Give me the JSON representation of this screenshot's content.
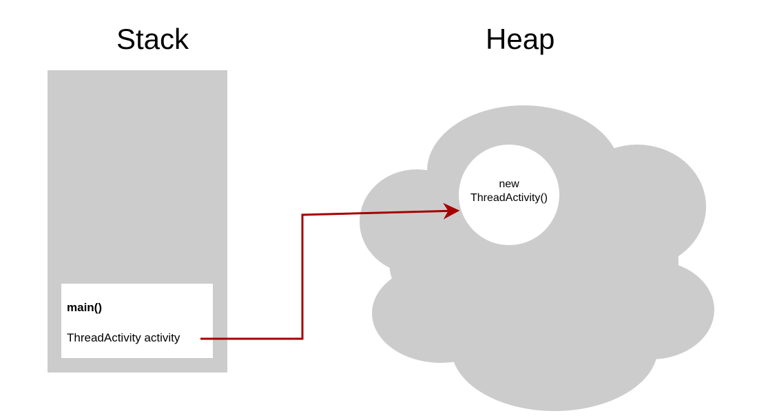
{
  "titles": {
    "stack": "Stack",
    "heap": "Heap"
  },
  "stack": {
    "frame": {
      "name": "main()",
      "variable": "ThreadActivity activity"
    }
  },
  "heap": {
    "object": {
      "line1": "new",
      "line2": "ThreadActivity()"
    }
  },
  "colors": {
    "region_fill": "#cccccc",
    "frame_fill": "#ffffff",
    "reference_arrow": "#a50000"
  }
}
